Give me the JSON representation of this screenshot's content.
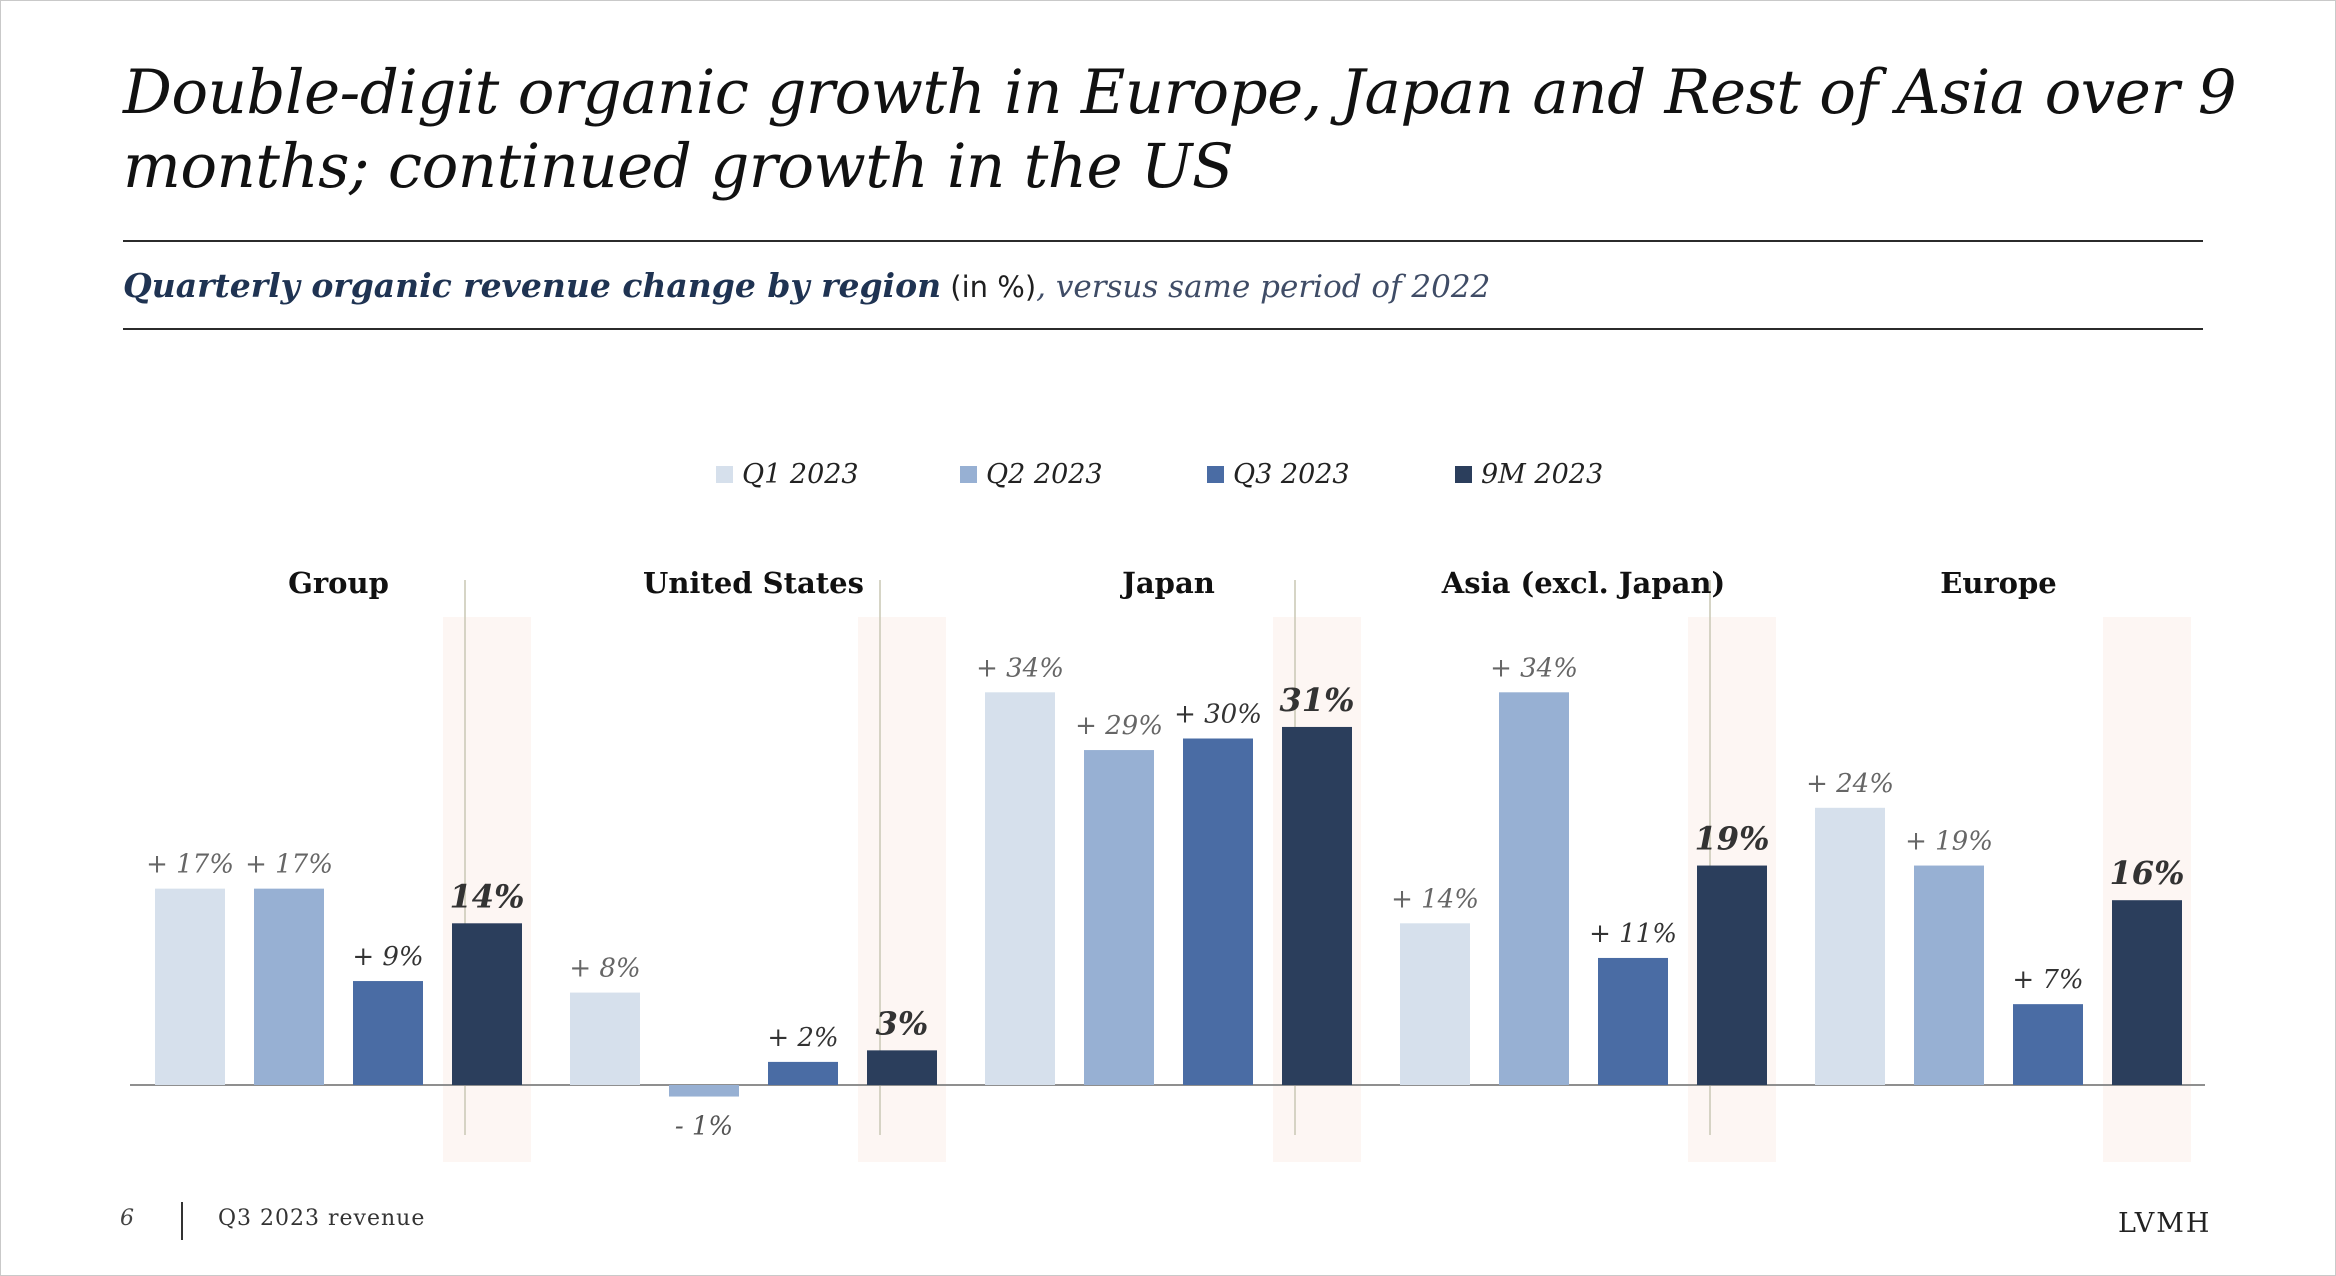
{
  "title": "Double-digit organic growth in Europe, Japan and Rest of Asia over 9 months; continued growth in the US",
  "subtitle": {
    "bold": "Quarterly organic revenue change by region",
    "unit": " (in %)",
    "italic": ", versus same period of 2022"
  },
  "footer": {
    "page_number": "6",
    "label": "Q3 2023 revenue",
    "brand": "LVMH"
  },
  "colors": {
    "q1": "#d6e0ec",
    "q2": "#97b0d3",
    "q3": "#4a6ca4",
    "nine_m": "#2b3e5c",
    "highlight": "#fdf6f3",
    "axis": "#8f8f8f",
    "divider": "#c9c7b4"
  },
  "chart_data": {
    "type": "bar",
    "legend_position": "top-center",
    "categories": [
      "Group",
      "United States",
      "Japan",
      "Asia (excl. Japan)",
      "Europe"
    ],
    "series": [
      {
        "name": "Q1 2023",
        "values": [
          17,
          8,
          34,
          14,
          24
        ],
        "labels": [
          "+ 17%",
          "+ 8%",
          "+ 34%",
          "+ 14%",
          "+ 24%"
        ]
      },
      {
        "name": "Q2 2023",
        "values": [
          17,
          -1,
          29,
          34,
          19
        ],
        "labels": [
          "+ 17%",
          "- 1%",
          "+ 29%",
          "+ 34%",
          "+ 19%"
        ]
      },
      {
        "name": "Q3 2023",
        "values": [
          9,
          2,
          30,
          11,
          7
        ],
        "labels": [
          "+ 9%",
          "+ 2%",
          "+ 30%",
          "+ 11%",
          "+ 7%"
        ]
      },
      {
        "name": "9M 2023",
        "values": [
          14,
          3,
          31,
          19,
          16
        ],
        "labels": [
          "14%",
          "3%",
          "31%",
          "19%",
          "16%"
        ]
      }
    ],
    "highlighted_series": "9M 2023"
  }
}
